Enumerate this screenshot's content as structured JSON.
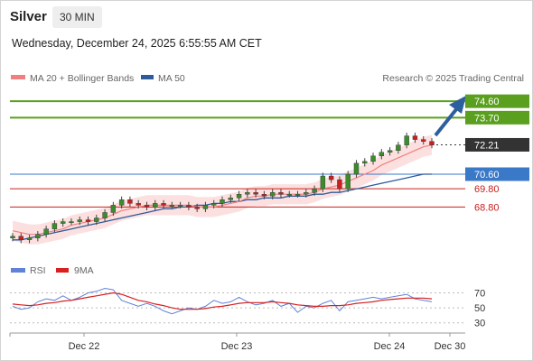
{
  "header": {
    "instrument": "Silver",
    "timeframe": "30 MIN",
    "datetime": "Wednesday, December 24, 2025 6:55:55 AM CET"
  },
  "legend": {
    "ma20": "MA 20 + Bollinger Bands",
    "ma50": "MA 50",
    "credit": "Research © 2025 Trading Central",
    "rsi": "RSI",
    "ma9": "9MA"
  },
  "colors": {
    "ma20": "#f08080",
    "ma50": "#2e5b9a",
    "band": "#fbd5d5",
    "resistance": "#5aa01e",
    "support_blue": "#3a78c8",
    "support_red": "#c8201e",
    "current": "#333333",
    "arrow": "#2d5f9e",
    "rsi": "#6082d8",
    "rsi_ma": "#d82020",
    "candle_up": "#3a8c2c",
    "candle_down": "#c8201e"
  },
  "chart_data": [
    {
      "type": "candlestick",
      "title": "Silver",
      "timeframe": "30 MIN",
      "ylim": [
        66.0,
        75.3
      ],
      "x_tick_labels": [
        "Dec 22",
        "Dec 23",
        "Dec 24",
        "Dec 30"
      ],
      "levels": [
        {
          "value": 74.6,
          "label": "74.60",
          "kind": "resistance"
        },
        {
          "value": 73.7,
          "label": "73.70",
          "kind": "resistance"
        },
        {
          "value": 72.21,
          "label": "72.21",
          "kind": "current"
        },
        {
          "value": 70.6,
          "label": "70.60",
          "kind": "pivot"
        },
        {
          "value": 69.8,
          "label": "69.80",
          "kind": "support"
        },
        {
          "value": 68.8,
          "label": "68.80",
          "kind": "support"
        }
      ],
      "close": [
        67.2,
        67.0,
        67.1,
        67.3,
        67.6,
        67.9,
        68.0,
        68.0,
        68.1,
        68.0,
        68.2,
        68.5,
        68.9,
        69.2,
        69.0,
        68.9,
        68.8,
        69.0,
        68.9,
        68.9,
        68.9,
        68.8,
        68.7,
        68.9,
        69.0,
        69.2,
        69.3,
        69.5,
        69.6,
        69.5,
        69.4,
        69.6,
        69.5,
        69.5,
        69.5,
        69.6,
        69.8,
        70.5,
        70.3,
        69.8,
        70.6,
        71.2,
        71.3,
        71.6,
        71.8,
        71.9,
        72.2,
        72.7,
        72.5,
        72.4,
        72.2
      ],
      "ma20": [
        67.5,
        67.4,
        67.3,
        67.3,
        67.4,
        67.5,
        67.6,
        67.8,
        67.9,
        68.0,
        68.1,
        68.2,
        68.4,
        68.6,
        68.7,
        68.8,
        68.9,
        68.9,
        68.9,
        68.9,
        68.9,
        68.9,
        68.8,
        68.8,
        68.8,
        68.9,
        69.0,
        69.1,
        69.3,
        69.4,
        69.4,
        69.5,
        69.5,
        69.5,
        69.5,
        69.5,
        69.6,
        69.8,
        69.9,
        70.0,
        70.2,
        70.4,
        70.6,
        70.8,
        71.1,
        71.3,
        71.5,
        71.7,
        71.9,
        72.1,
        72.2
      ],
      "ma50": [
        67.0,
        67.0,
        67.1,
        67.2,
        67.3,
        67.4,
        67.5,
        67.6,
        67.7,
        67.8,
        67.9,
        68.0,
        68.1,
        68.2,
        68.3,
        68.4,
        68.5,
        68.6,
        68.7,
        68.7,
        68.8,
        68.8,
        68.9,
        68.9,
        69.0,
        69.0,
        69.1,
        69.1,
        69.2,
        69.2,
        69.3,
        69.3,
        69.3,
        69.4,
        69.4,
        69.4,
        69.5,
        69.5,
        69.6,
        69.6,
        69.7,
        69.8,
        69.9,
        70.0,
        70.1,
        70.2,
        70.3,
        70.4,
        70.5,
        70.6,
        70.6
      ]
    },
    {
      "type": "line",
      "title": "RSI",
      "y_ticks": [
        70,
        50,
        30
      ],
      "series": [
        {
          "name": "RSI",
          "values": [
            52,
            48,
            50,
            58,
            62,
            60,
            66,
            60,
            64,
            70,
            72,
            76,
            74,
            60,
            56,
            52,
            56,
            52,
            46,
            42,
            46,
            50,
            48,
            52,
            60,
            56,
            58,
            64,
            58,
            54,
            56,
            60,
            52,
            56,
            44,
            52,
            50,
            56,
            60,
            46,
            58,
            60,
            62,
            64,
            62,
            64,
            66,
            68,
            62,
            60,
            58
          ]
        },
        {
          "name": "9MA",
          "values": [
            55,
            54,
            53,
            54,
            56,
            57,
            59,
            60,
            62,
            64,
            66,
            68,
            70,
            68,
            64,
            60,
            58,
            55,
            53,
            50,
            48,
            48,
            48,
            49,
            51,
            52,
            54,
            56,
            57,
            57,
            57,
            58,
            57,
            56,
            54,
            53,
            52,
            52,
            53,
            53,
            54,
            56,
            57,
            58,
            60,
            61,
            62,
            63,
            63,
            63,
            62
          ]
        }
      ]
    }
  ]
}
